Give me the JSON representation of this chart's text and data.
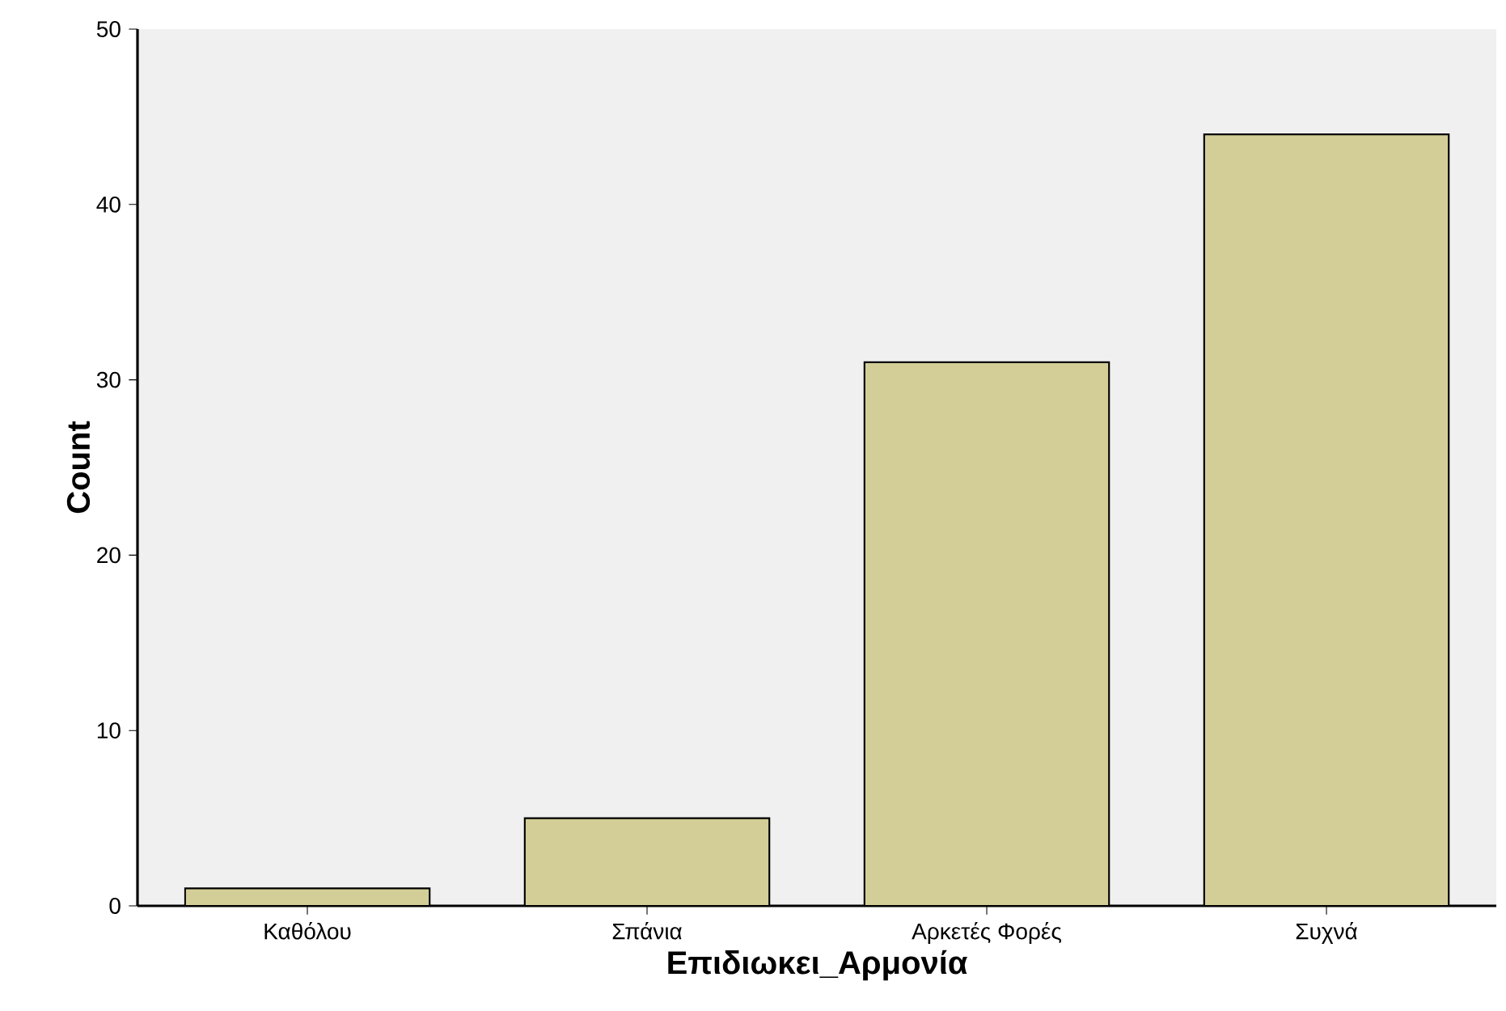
{
  "chart_data": {
    "type": "bar",
    "xlabel": "Επιδιωκει_Αρμονία",
    "ylabel": "Count",
    "categories": [
      "Καθόλου",
      "Σπάνια",
      "Αρκετές Φορές",
      "Συχνά"
    ],
    "values": [
      1,
      5,
      31,
      44
    ],
    "color": "#d3ce97",
    "ylim": [
      0,
      50
    ],
    "yticks": [
      0,
      10,
      20,
      30,
      40,
      50
    ]
  }
}
